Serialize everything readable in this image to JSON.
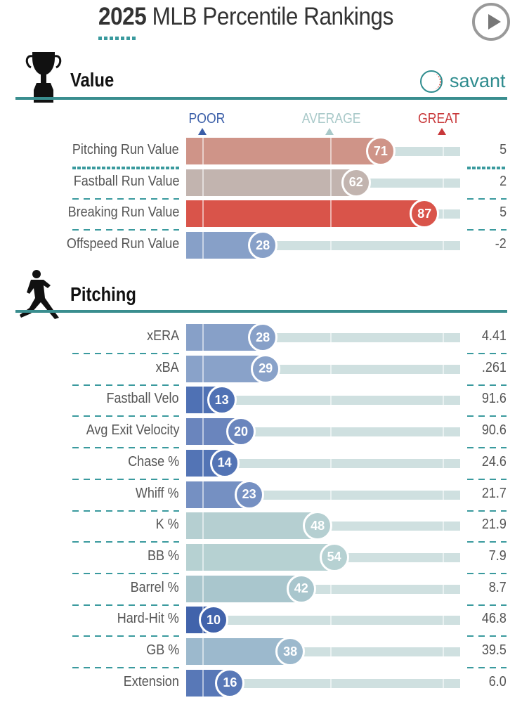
{
  "header": {
    "title_bold": "2025",
    "title_rest": " MLB Percentile Rankings",
    "play_icon": "play-icon"
  },
  "sections": {
    "value": {
      "title": "Value",
      "icon": "trophy-icon",
      "brand": "savant"
    },
    "pitching": {
      "title": "Pitching",
      "icon": "pitcher-icon"
    }
  },
  "scale": {
    "poor": "POOR",
    "average": "AVERAGE",
    "great": "GREAT",
    "poor_color": "#3a5ea8",
    "average_color": "#a9c9c9",
    "great_color": "#c8383a"
  },
  "chart_data": {
    "type": "bar",
    "xlim": [
      0,
      100
    ],
    "groups": [
      {
        "name": "Value",
        "rows": [
          {
            "label": "Pitching Run Value",
            "percentile": 71,
            "value": "5",
            "color": "#cf9488"
          },
          {
            "label": "Fastball Run Value",
            "percentile": 62,
            "value": "2",
            "color": "#c2b4af"
          },
          {
            "label": "Breaking Run Value",
            "percentile": 87,
            "value": "5",
            "color": "#d9544a"
          },
          {
            "label": "Offspeed Run Value",
            "percentile": 28,
            "value": "-2",
            "color": "#87a0c8"
          }
        ]
      },
      {
        "name": "Pitching",
        "rows": [
          {
            "label": "xERA",
            "percentile": 28,
            "value": "4.41",
            "color": "#87a0c8"
          },
          {
            "label": "xBA",
            "percentile": 29,
            "value": ".261",
            "color": "#89a2c9"
          },
          {
            "label": "Fastball Velo",
            "percentile": 13,
            "value": "91.6",
            "color": "#4f71b4"
          },
          {
            "label": "Avg Exit Velocity",
            "percentile": 20,
            "value": "90.6",
            "color": "#6a85bd"
          },
          {
            "label": "Chase %",
            "percentile": 14,
            "value": "24.6",
            "color": "#5374b5"
          },
          {
            "label": "Whiff %",
            "percentile": 23,
            "value": "21.7",
            "color": "#7590c2"
          },
          {
            "label": "K %",
            "percentile": 48,
            "value": "21.9",
            "color": "#b5cfd1"
          },
          {
            "label": "BB %",
            "percentile": 54,
            "value": "7.9",
            "color": "#b6d1d2"
          },
          {
            "label": "Barrel %",
            "percentile": 42,
            "value": "8.7",
            "color": "#a9c6cd"
          },
          {
            "label": "Hard-Hit %",
            "percentile": 10,
            "value": "46.8",
            "color": "#4163ab"
          },
          {
            "label": "GB %",
            "percentile": 38,
            "value": "39.5",
            "color": "#9cb9cd"
          },
          {
            "label": "Extension",
            "percentile": 16,
            "value": "6.0",
            "color": "#5878b7"
          }
        ]
      }
    ]
  }
}
